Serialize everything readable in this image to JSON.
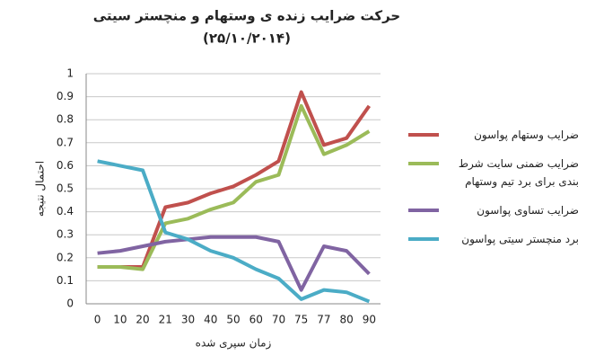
{
  "chart_data": {
    "type": "line",
    "title": "حرکت ضرایب زنده ی وستهام و منچستر سیتی",
    "subtitle": "(۲۵/۱۰/۲۰۱۴)",
    "x_label": "زمان سپری شده",
    "y_label": "احتمال نتیجه",
    "categories": [
      "0",
      "10",
      "20",
      "21",
      "30",
      "40",
      "50",
      "60",
      "70",
      "75",
      "77",
      "80",
      "90"
    ],
    "series": [
      {
        "name": "ضرایب وستهام پواسون",
        "color": "#c0504d",
        "values": [
          0.16,
          0.16,
          0.16,
          0.42,
          0.44,
          0.48,
          0.51,
          0.56,
          0.62,
          0.92,
          0.69,
          0.72,
          0.86
        ]
      },
      {
        "name": "ضرایب ضمنی سایت شرط بندی برای برد تیم وستهام",
        "color": "#9bbb59",
        "values": [
          0.16,
          0.16,
          0.15,
          0.35,
          0.37,
          0.41,
          0.44,
          0.53,
          0.56,
          0.86,
          0.65,
          0.69,
          0.75
        ]
      },
      {
        "name": "ضرایب تساوی پواسون",
        "color": "#8064a2",
        "values": [
          0.22,
          0.23,
          0.25,
          0.27,
          0.28,
          0.29,
          0.29,
          0.29,
          0.27,
          0.06,
          0.25,
          0.23,
          0.13
        ]
      },
      {
        "name": "برد منچستر سیتی پواسون",
        "color": "#4bacc6",
        "values": [
          0.62,
          0.6,
          0.58,
          0.31,
          0.28,
          0.23,
          0.2,
          0.15,
          0.11,
          0.02,
          0.06,
          0.05,
          0.01
        ]
      }
    ],
    "ylim": [
      0,
      1
    ],
    "yticks": [
      0,
      0.1,
      0.2,
      0.3,
      0.4,
      0.5,
      0.6,
      0.7,
      0.8,
      0.9,
      1
    ],
    "grid": true
  }
}
